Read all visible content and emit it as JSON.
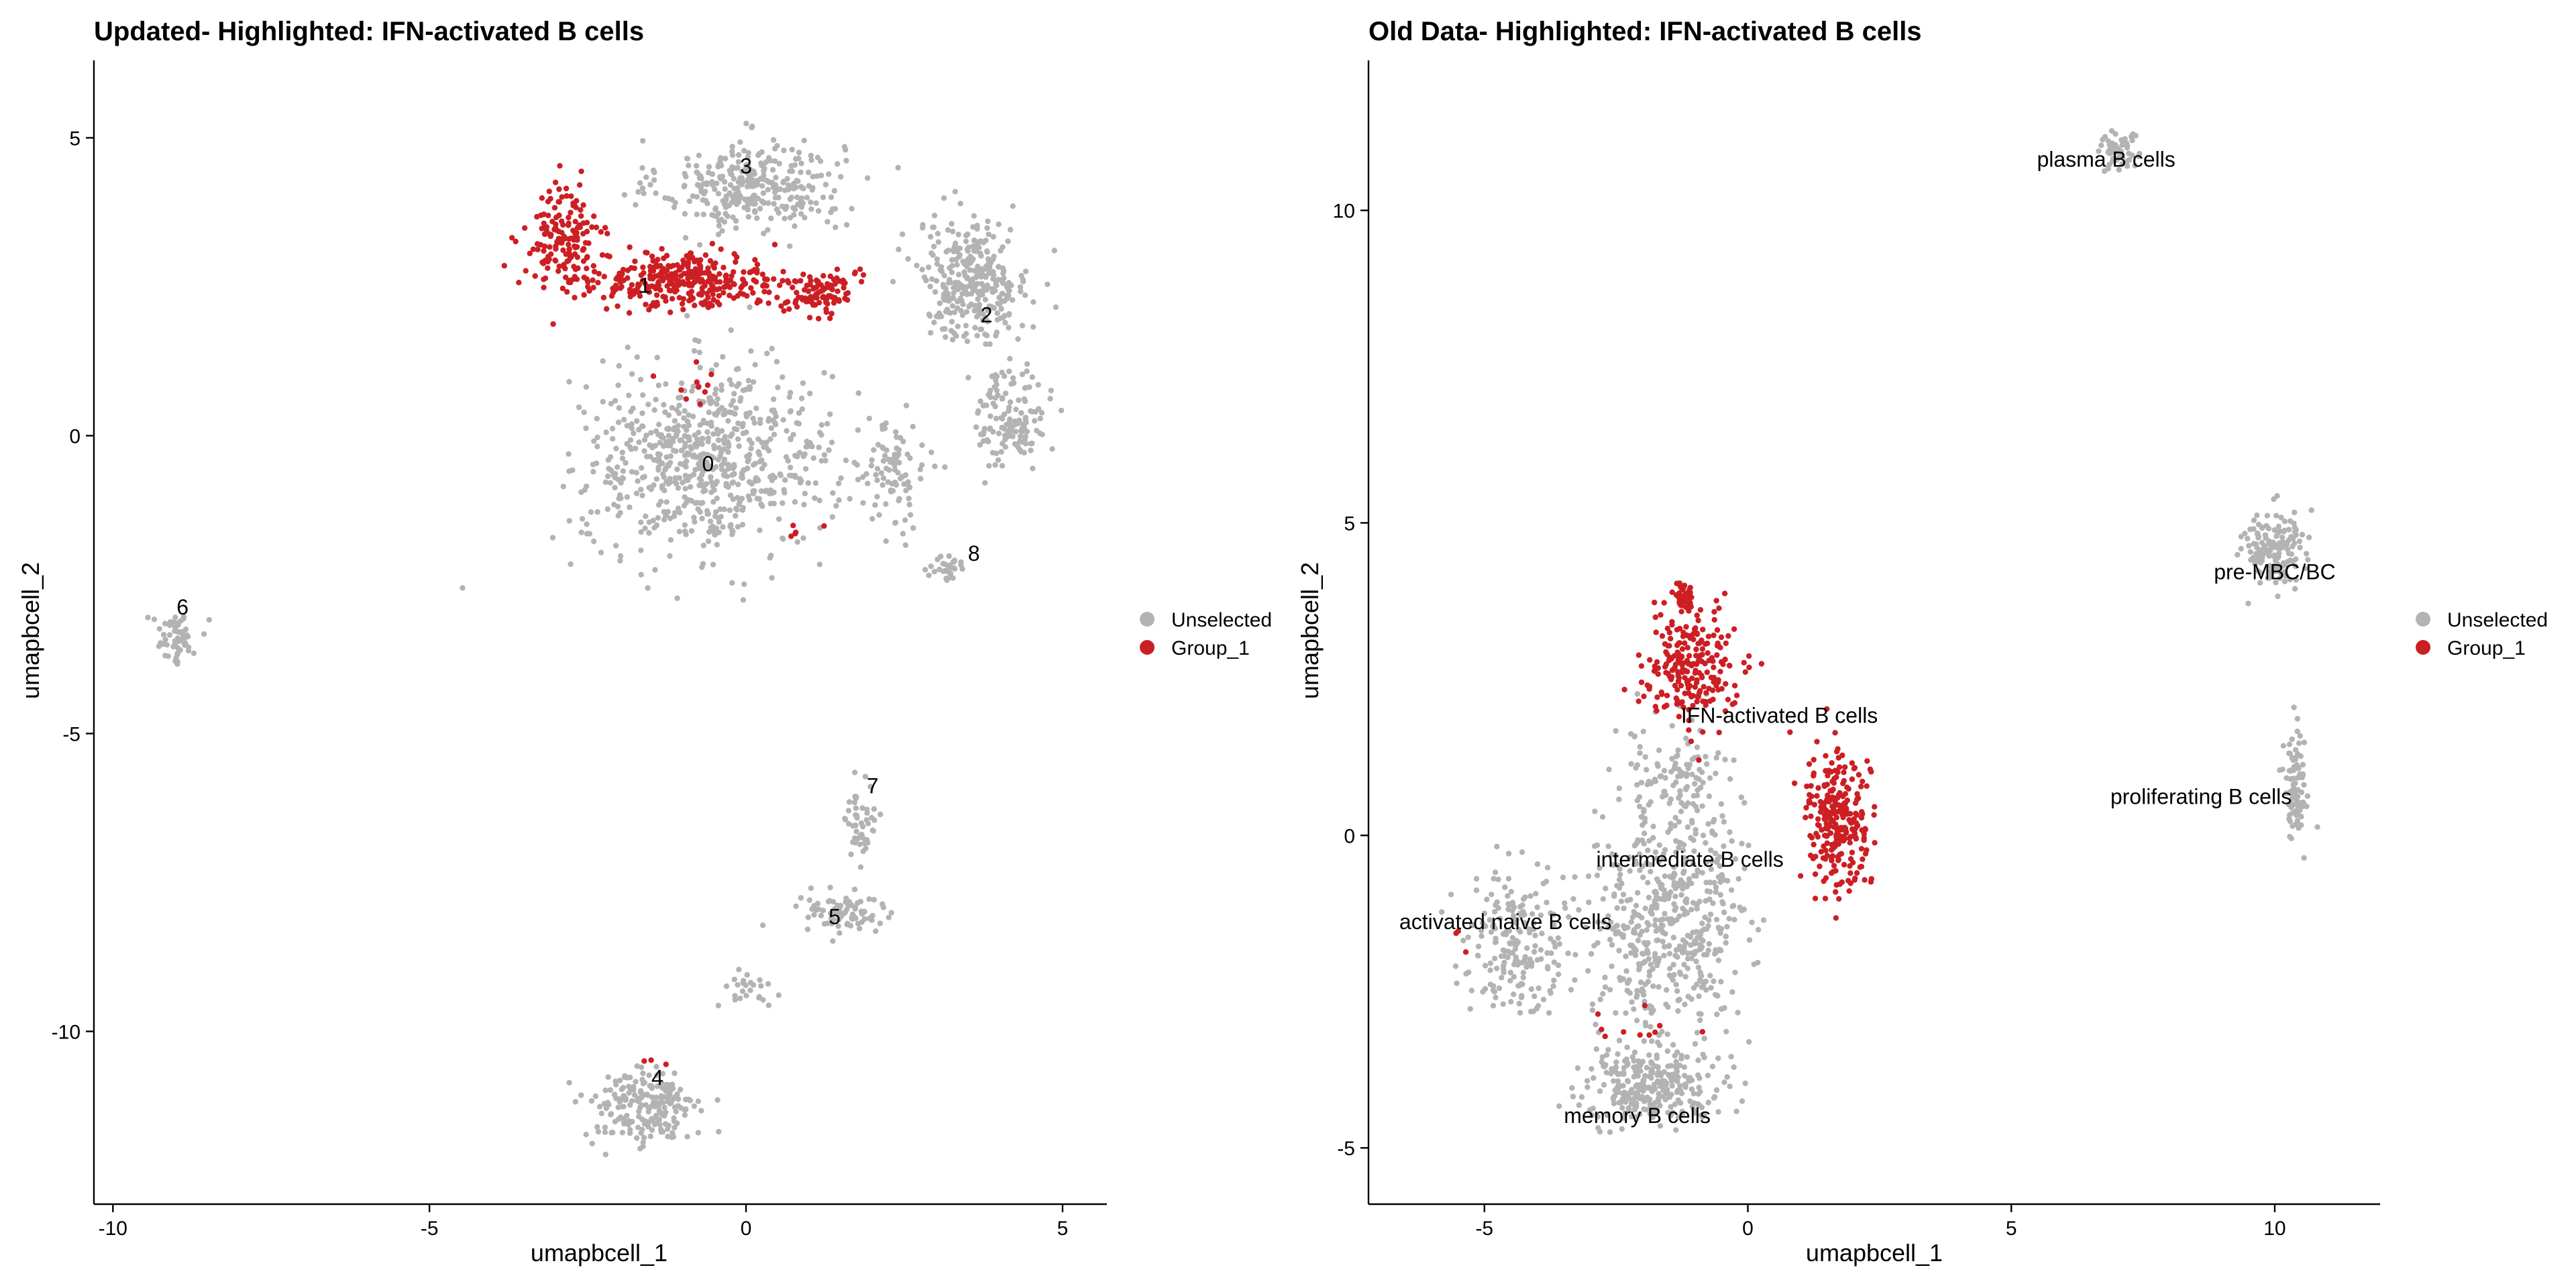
{
  "colors": {
    "unselected": "#b3b3b3",
    "selected": "#cc1f24",
    "axis": "#000000",
    "background": "#ffffff"
  },
  "chart_data": [
    {
      "type": "scatter",
      "title": "Updated- Highlighted: IFN-activated B cells",
      "xlabel": "umapbcell_1",
      "ylabel": "umapbcell_2",
      "xlim": [
        -10.3,
        5.7
      ],
      "ylim": [
        -12.9,
        6.3
      ],
      "xticks": [
        -10,
        -5,
        0,
        5
      ],
      "yticks": [
        -10,
        -5,
        0,
        5
      ],
      "xtick_labels": [
        "-10",
        "-5",
        "0",
        "5"
      ],
      "ytick_labels": [
        "-10",
        "-5",
        "0",
        "5"
      ],
      "grid": false,
      "legend": {
        "position": "right",
        "entries": [
          {
            "label": "Unselected",
            "color": "#b3b3b3"
          },
          {
            "label": "Group_1",
            "color": "#cc1f24"
          }
        ]
      },
      "labels": [
        {
          "text": "3",
          "x": 0.0,
          "y": 4.4
        },
        {
          "text": "1",
          "x": -1.6,
          "y": 2.4
        },
        {
          "text": "2",
          "x": 3.8,
          "y": 1.9
        },
        {
          "text": "0",
          "x": -0.6,
          "y": -0.6
        },
        {
          "text": "8",
          "x": 3.6,
          "y": -2.1
        },
        {
          "text": "6",
          "x": -8.9,
          "y": -3.0
        },
        {
          "text": "7",
          "x": 2.0,
          "y": -6.0
        },
        {
          "text": "5",
          "x": 1.4,
          "y": -8.2
        },
        {
          "text": "4",
          "x": -1.4,
          "y": -10.9
        }
      ],
      "series": [
        {
          "name": "Unselected",
          "color": "#b3b3b3",
          "clusters": [
            {
              "cx": 0.1,
              "cy": 4.2,
              "sx": 1.3,
              "sy": 0.7,
              "n": 330
            },
            {
              "cx": 3.6,
              "cy": 2.6,
              "sx": 0.8,
              "sy": 0.9,
              "n": 320
            },
            {
              "cx": 4.2,
              "cy": 0.3,
              "sx": 0.5,
              "sy": 0.8,
              "n": 140
            },
            {
              "cx": -0.6,
              "cy": -0.4,
              "sx": 1.8,
              "sy": 1.4,
              "n": 700
            },
            {
              "cx": 2.3,
              "cy": -0.7,
              "sx": 0.5,
              "sy": 0.8,
              "n": 90
            },
            {
              "cx": 3.2,
              "cy": -2.2,
              "sx": 0.25,
              "sy": 0.2,
              "n": 30
            },
            {
              "cx": -9.0,
              "cy": -3.4,
              "sx": 0.3,
              "sy": 0.4,
              "n": 60
            },
            {
              "cx": 1.8,
              "cy": -6.5,
              "sx": 0.25,
              "sy": 0.6,
              "n": 50
            },
            {
              "cx": 1.5,
              "cy": -8.0,
              "sx": 0.7,
              "sy": 0.4,
              "n": 80
            },
            {
              "cx": 0.0,
              "cy": -9.3,
              "sx": 0.4,
              "sy": 0.3,
              "n": 25
            },
            {
              "cx": -1.6,
              "cy": -11.3,
              "sx": 0.8,
              "sy": 0.6,
              "n": 210
            }
          ]
        },
        {
          "name": "Group_1",
          "color": "#cc1f24",
          "clusters": [
            {
              "cx": -2.9,
              "cy": 3.3,
              "sx": 0.55,
              "sy": 0.8,
              "n": 160
            },
            {
              "cx": -0.9,
              "cy": 2.6,
              "sx": 1.3,
              "sy": 0.4,
              "n": 330
            },
            {
              "cx": 1.2,
              "cy": 2.4,
              "sx": 0.5,
              "sy": 0.35,
              "n": 100
            },
            {
              "cx": -0.9,
              "cy": 0.9,
              "sx": 0.5,
              "sy": 0.4,
              "n": 10
            },
            {
              "cx": -1.5,
              "cy": -10.6,
              "sx": 0.3,
              "sy": 0.1,
              "n": 3
            },
            {
              "cx": 0.7,
              "cy": -1.6,
              "sx": 0.4,
              "sy": 0.2,
              "n": 5
            }
          ]
        }
      ]
    },
    {
      "type": "scatter",
      "title": "Old Data- Highlighted: IFN-activated B cells",
      "xlabel": "umapbcell_1",
      "ylabel": "umapbcell_2",
      "xlim": [
        -7.2,
        12.0
      ],
      "ylim": [
        -5.9,
        12.4
      ],
      "xticks": [
        -5,
        0,
        5,
        10
      ],
      "yticks": [
        -5,
        0,
        5,
        10
      ],
      "xtick_labels": [
        "-5",
        "0",
        "5",
        "10"
      ],
      "ytick_labels": [
        "-5",
        "0",
        "5",
        "10"
      ],
      "grid": false,
      "legend": {
        "position": "right",
        "entries": [
          {
            "label": "Unselected",
            "color": "#b3b3b3"
          },
          {
            "label": "Group_1",
            "color": "#cc1f24"
          }
        ]
      },
      "labels": [
        {
          "text": "plasma B cells",
          "x": 6.8,
          "y": 10.7
        },
        {
          "text": "pre-MBC/BC",
          "x": 10.0,
          "y": 4.1
        },
        {
          "text": "IFN-activated B cells",
          "x": 0.6,
          "y": 1.8
        },
        {
          "text": "proliferating B cells",
          "x": 8.6,
          "y": 0.5
        },
        {
          "text": "intermediate B cells",
          "x": -1.1,
          "y": -0.5
        },
        {
          "text": "activated naive B cells",
          "x": -4.6,
          "y": -1.5
        },
        {
          "text": "memory B cells",
          "x": -2.1,
          "y": -4.6
        }
      ],
      "series": [
        {
          "name": "Unselected",
          "color": "#b3b3b3",
          "clusters": [
            {
              "cx": 7.0,
              "cy": 11.0,
              "sx": 0.3,
              "sy": 0.35,
              "n": 60
            },
            {
              "cx": 10.0,
              "cy": 4.6,
              "sx": 0.55,
              "sy": 0.55,
              "n": 150
            },
            {
              "cx": 10.4,
              "cy": 0.8,
              "sx": 0.2,
              "sy": 0.9,
              "n": 90
            },
            {
              "cx": -1.5,
              "cy": -1.4,
              "sx": 1.3,
              "sy": 1.6,
              "n": 520
            },
            {
              "cx": -4.4,
              "cy": -1.7,
              "sx": 0.9,
              "sy": 1.0,
              "n": 200
            },
            {
              "cx": -1.8,
              "cy": -4.0,
              "sx": 1.2,
              "sy": 0.5,
              "n": 280
            },
            {
              "cx": -1.4,
              "cy": 0.9,
              "sx": 1.0,
              "sy": 0.9,
              "n": 120
            }
          ]
        },
        {
          "name": "Group_1",
          "color": "#cc1f24",
          "clusters": [
            {
              "cx": -1.1,
              "cy": 2.7,
              "sx": 0.8,
              "sy": 0.8,
              "n": 230
            },
            {
              "cx": 1.7,
              "cy": 0.3,
              "sx": 0.55,
              "sy": 1.0,
              "n": 260
            },
            {
              "cx": -1.2,
              "cy": 3.8,
              "sx": 0.15,
              "sy": 0.25,
              "n": 40
            },
            {
              "cx": -2.2,
              "cy": -3.2,
              "sx": 1.0,
              "sy": 0.35,
              "n": 10
            },
            {
              "cx": -5.5,
              "cy": -1.7,
              "sx": 0.2,
              "sy": 0.3,
              "n": 3
            }
          ]
        }
      ]
    }
  ]
}
